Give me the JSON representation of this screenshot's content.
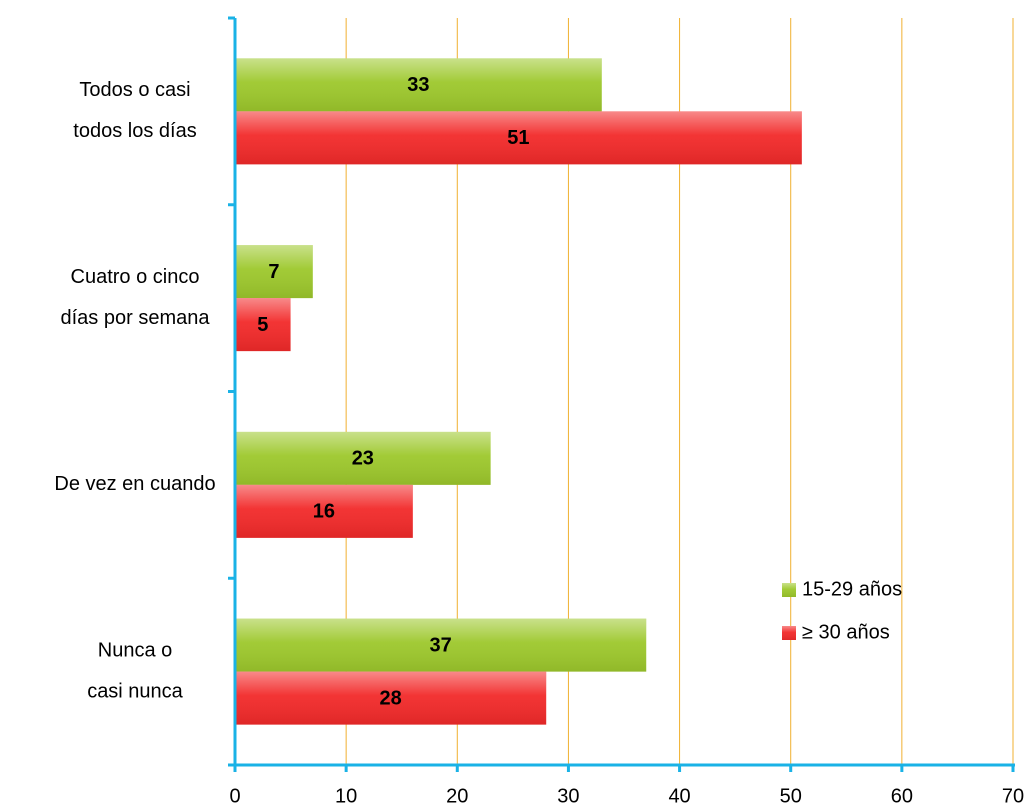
{
  "chart_data": {
    "type": "hbar",
    "categories": [
      [
        "Todos o casi",
        "todos los días"
      ],
      [
        "Cuatro o cinco",
        "días por semana"
      ],
      [
        "De vez en cuando"
      ],
      [
        "Nunca o",
        "casi nunca"
      ]
    ],
    "series": [
      {
        "name": "15-29 años",
        "color": "#9dc82c",
        "values": [
          33,
          7,
          23,
          37
        ]
      },
      {
        "name": "≥ 30 años",
        "color": "#f22a2a",
        "values": [
          51,
          5,
          16,
          28
        ]
      }
    ],
    "xlim": [
      0,
      70
    ],
    "xticks": [
      0,
      10,
      20,
      30,
      40,
      50,
      60,
      70
    ],
    "grid": true,
    "legend": "lower right"
  }
}
